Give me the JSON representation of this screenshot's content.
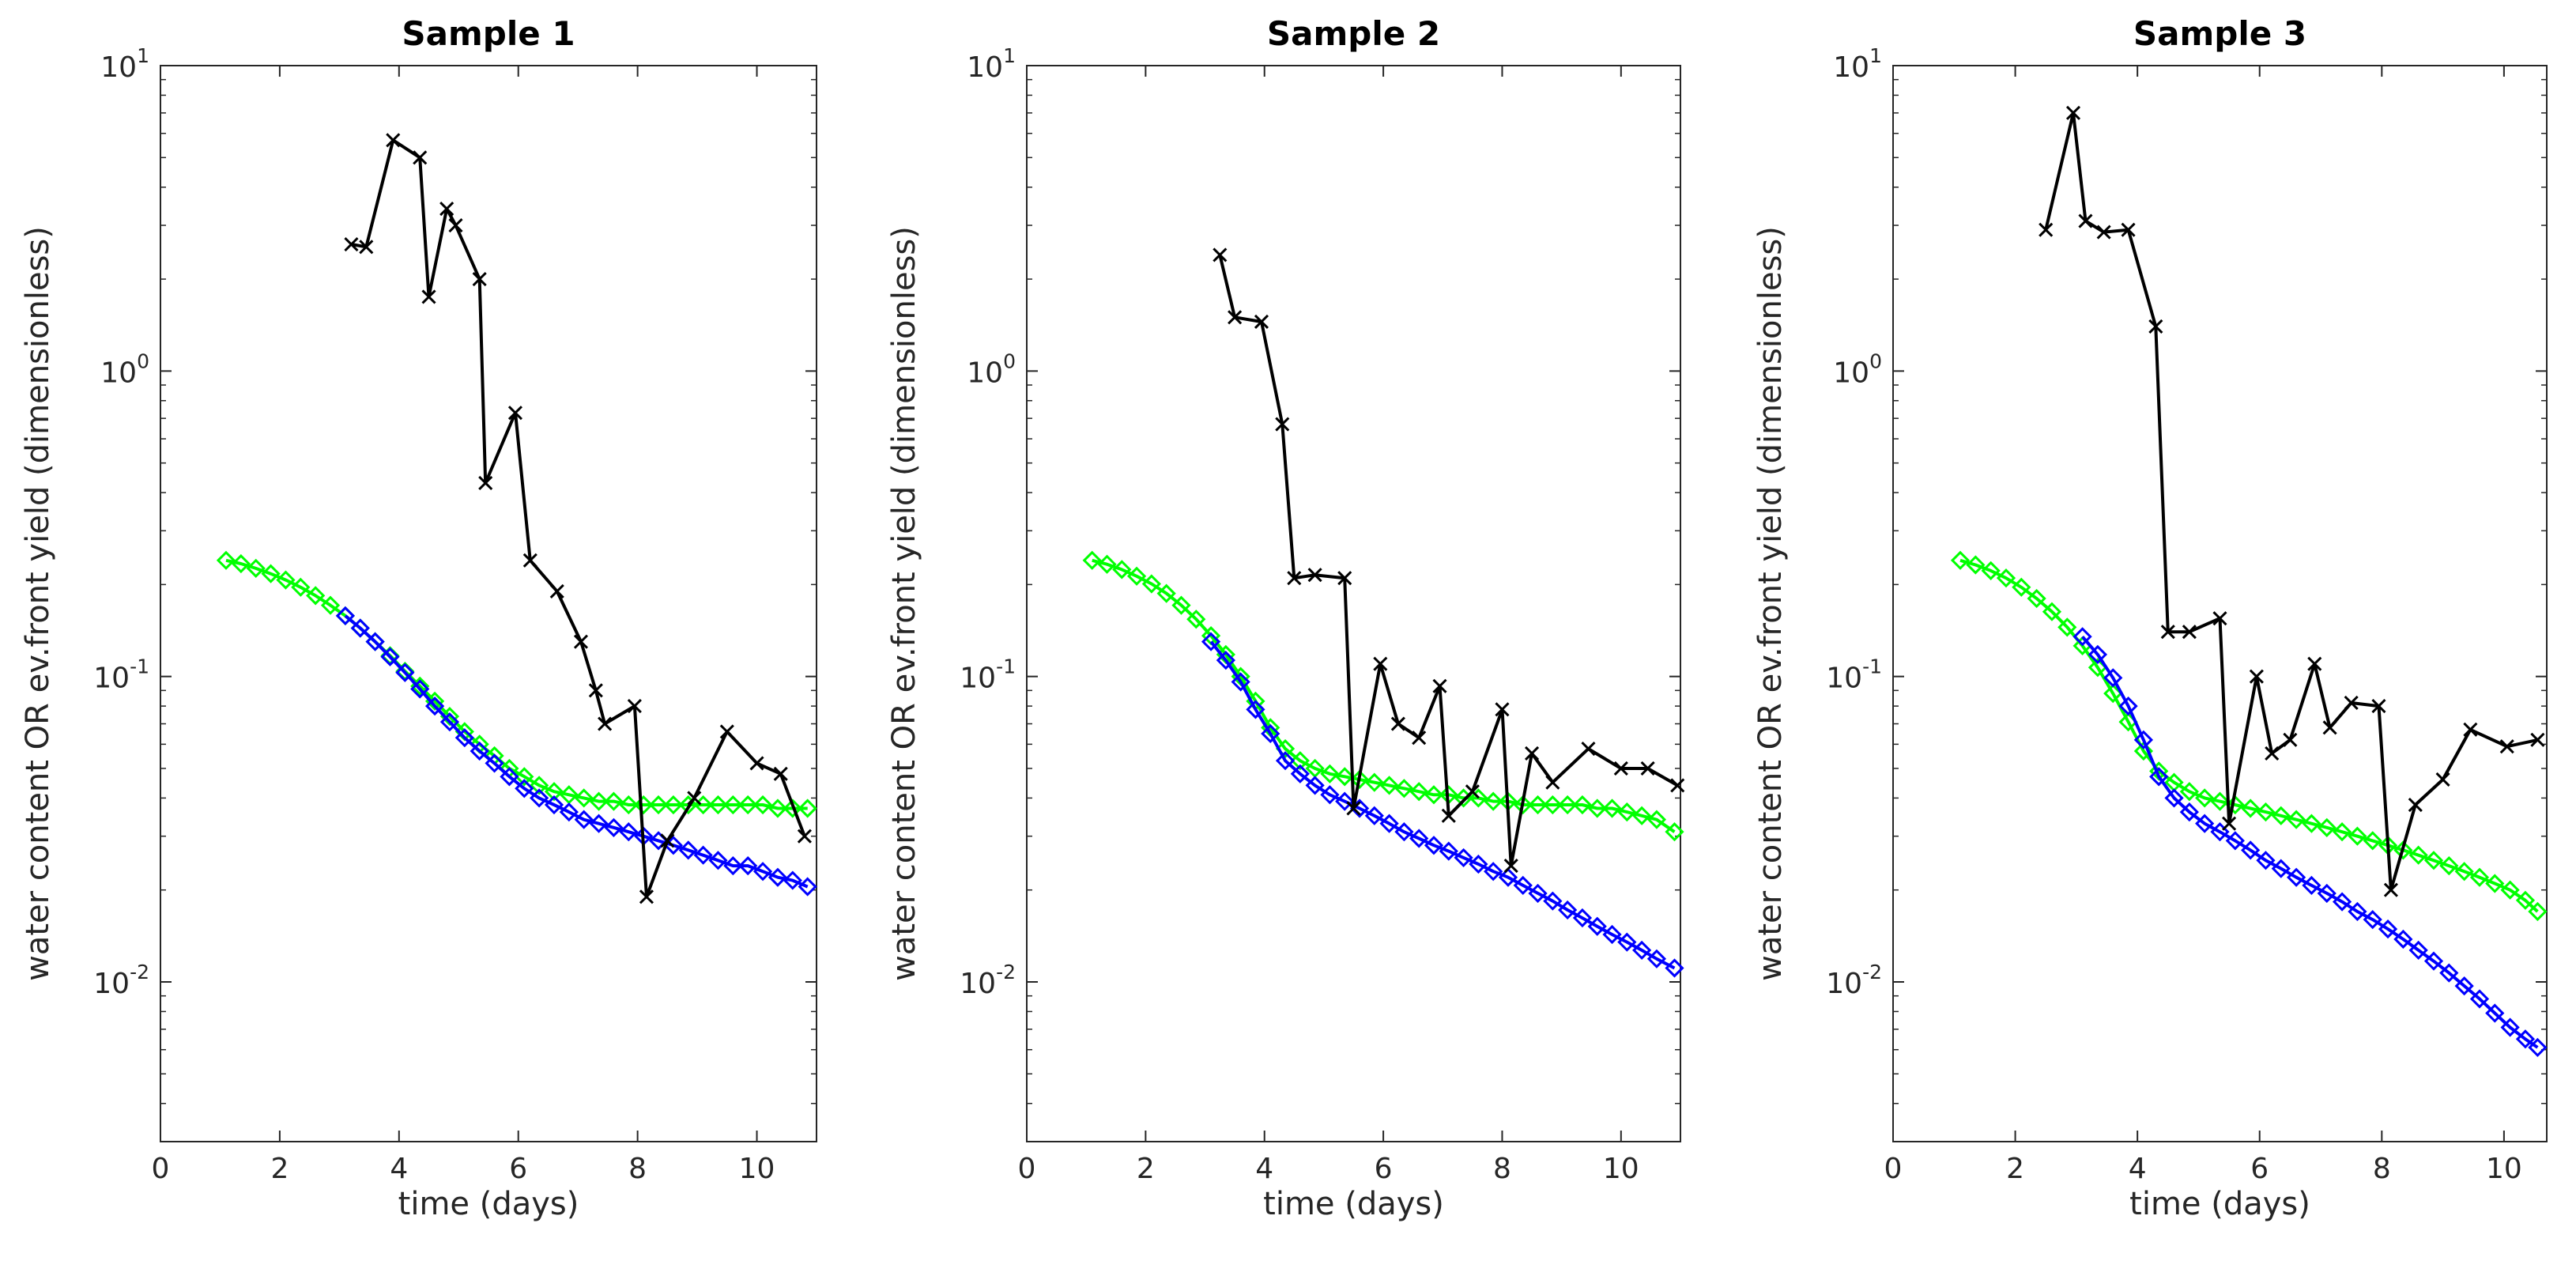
{
  "figure": {
    "colors": {
      "black_series": "#000000",
      "green_series": "#00ff00",
      "blue_series": "#0000ff",
      "axis": "#262626"
    }
  },
  "chart_data": [
    {
      "type": "line",
      "title": "Sample 1",
      "xlabel": "time (days)",
      "ylabel": "water content OR ev.front yield (dimensionless)",
      "yscale": "log",
      "xlim": [
        0,
        11
      ],
      "ylim": [
        0.003,
        10
      ],
      "xticks": [
        0,
        2,
        4,
        6,
        8,
        10
      ],
      "yticks": [
        {
          "base": "10",
          "exp": "-2",
          "value": 0.01
        },
        {
          "base": "10",
          "exp": "-1",
          "value": 0.1
        },
        {
          "base": "10",
          "exp": "0",
          "value": 1
        },
        {
          "base": "10",
          "exp": "1",
          "value": 10
        }
      ],
      "series": [
        {
          "name": "ev.front yield",
          "color": "#000000",
          "marker": "x",
          "x": [
            3.2,
            3.45,
            3.9,
            4.35,
            4.5,
            4.8,
            4.95,
            5.35,
            5.45,
            5.95,
            6.2,
            6.65,
            7.05,
            7.3,
            7.45,
            7.95,
            8.15,
            8.5,
            8.95,
            9.5,
            10.0,
            10.4,
            10.8
          ],
          "y": [
            2.6,
            2.55,
            5.7,
            5.0,
            1.75,
            3.4,
            3.0,
            2.0,
            0.43,
            0.73,
            0.24,
            0.19,
            0.13,
            0.09,
            0.07,
            0.08,
            0.019,
            0.029,
            0.04,
            0.066,
            0.052,
            0.048,
            0.03
          ]
        },
        {
          "name": "green",
          "color": "#00ff00",
          "marker": "diamond",
          "x": [
            1.1,
            1.35,
            1.6,
            1.85,
            2.1,
            2.35,
            2.6,
            2.85,
            3.1,
            3.35,
            3.6,
            3.85,
            4.1,
            4.35,
            4.6,
            4.85,
            5.1,
            5.35,
            5.6,
            5.85,
            6.1,
            6.35,
            6.6,
            6.85,
            7.1,
            7.35,
            7.6,
            7.85,
            8.1,
            8.35,
            8.6,
            8.85,
            9.1,
            9.35,
            9.6,
            9.85,
            10.1,
            10.35,
            10.6,
            10.85
          ],
          "y": [
            0.24,
            0.234,
            0.226,
            0.217,
            0.207,
            0.196,
            0.184,
            0.171,
            0.158,
            0.144,
            0.13,
            0.117,
            0.104,
            0.093,
            0.083,
            0.074,
            0.066,
            0.06,
            0.055,
            0.05,
            0.047,
            0.044,
            0.042,
            0.041,
            0.04,
            0.039,
            0.039,
            0.038,
            0.038,
            0.038,
            0.038,
            0.038,
            0.038,
            0.038,
            0.038,
            0.038,
            0.038,
            0.037,
            0.037,
            0.037
          ]
        },
        {
          "name": "blue",
          "color": "#0000ff",
          "marker": "diamond",
          "x": [
            3.1,
            3.35,
            3.6,
            3.85,
            4.1,
            4.35,
            4.6,
            4.85,
            5.1,
            5.35,
            5.6,
            5.85,
            6.1,
            6.35,
            6.6,
            6.85,
            7.1,
            7.35,
            7.6,
            7.85,
            8.1,
            8.35,
            8.6,
            8.85,
            9.1,
            9.35,
            9.6,
            9.85,
            10.1,
            10.35,
            10.6,
            10.85
          ],
          "y": [
            0.158,
            0.144,
            0.13,
            0.116,
            0.103,
            0.091,
            0.08,
            0.071,
            0.063,
            0.057,
            0.052,
            0.047,
            0.043,
            0.04,
            0.038,
            0.036,
            0.034,
            0.033,
            0.032,
            0.031,
            0.03,
            0.029,
            0.028,
            0.027,
            0.026,
            0.025,
            0.024,
            0.024,
            0.023,
            0.022,
            0.0215,
            0.0205
          ]
        }
      ]
    },
    {
      "type": "line",
      "title": "Sample 2",
      "xlabel": "time (days)",
      "ylabel": "water content OR ev.front yield (dimensionless)",
      "yscale": "log",
      "xlim": [
        0,
        11
      ],
      "ylim": [
        0.003,
        10
      ],
      "xticks": [
        0,
        2,
        4,
        6,
        8,
        10
      ],
      "yticks": [
        {
          "base": "10",
          "exp": "-2",
          "value": 0.01
        },
        {
          "base": "10",
          "exp": "-1",
          "value": 0.1
        },
        {
          "base": "10",
          "exp": "0",
          "value": 1
        },
        {
          "base": "10",
          "exp": "1",
          "value": 10
        }
      ],
      "series": [
        {
          "name": "ev.front yield",
          "color": "#000000",
          "marker": "x",
          "x": [
            3.25,
            3.5,
            3.95,
            4.3,
            4.5,
            4.85,
            5.35,
            5.5,
            5.95,
            6.25,
            6.6,
            6.95,
            7.1,
            7.5,
            8.0,
            8.15,
            8.5,
            8.85,
            9.45,
            10.0,
            10.45,
            10.95
          ],
          "y": [
            2.4,
            1.5,
            1.45,
            0.67,
            0.21,
            0.215,
            0.21,
            0.037,
            0.11,
            0.07,
            0.063,
            0.093,
            0.035,
            0.042,
            0.078,
            0.024,
            0.056,
            0.045,
            0.058,
            0.05,
            0.05,
            0.044
          ]
        },
        {
          "name": "green",
          "color": "#00ff00",
          "marker": "diamond",
          "x": [
            1.1,
            1.35,
            1.6,
            1.85,
            2.1,
            2.35,
            2.6,
            2.85,
            3.1,
            3.35,
            3.6,
            3.85,
            4.1,
            4.35,
            4.6,
            4.85,
            5.1,
            5.35,
            5.6,
            5.85,
            6.1,
            6.35,
            6.6,
            6.85,
            7.1,
            7.35,
            7.6,
            7.85,
            8.1,
            8.35,
            8.6,
            8.85,
            9.1,
            9.35,
            9.6,
            9.85,
            10.1,
            10.35,
            10.6,
            10.9
          ],
          "y": [
            0.24,
            0.233,
            0.224,
            0.213,
            0.201,
            0.187,
            0.171,
            0.154,
            0.136,
            0.118,
            0.1,
            0.083,
            0.068,
            0.058,
            0.053,
            0.05,
            0.048,
            0.047,
            0.046,
            0.045,
            0.044,
            0.043,
            0.042,
            0.041,
            0.041,
            0.04,
            0.04,
            0.039,
            0.039,
            0.038,
            0.038,
            0.038,
            0.038,
            0.038,
            0.037,
            0.037,
            0.036,
            0.035,
            0.034,
            0.031
          ]
        },
        {
          "name": "blue",
          "color": "#0000ff",
          "marker": "diamond",
          "x": [
            3.1,
            3.35,
            3.6,
            3.85,
            4.1,
            4.35,
            4.6,
            4.85,
            5.1,
            5.35,
            5.6,
            5.85,
            6.1,
            6.35,
            6.6,
            6.85,
            7.1,
            7.35,
            7.6,
            7.85,
            8.1,
            8.35,
            8.6,
            8.85,
            9.1,
            9.35,
            9.6,
            9.85,
            10.1,
            10.35,
            10.6,
            10.9
          ],
          "y": [
            0.13,
            0.113,
            0.096,
            0.078,
            0.065,
            0.053,
            0.048,
            0.044,
            0.041,
            0.039,
            0.037,
            0.035,
            0.033,
            0.031,
            0.0295,
            0.028,
            0.0268,
            0.0255,
            0.0243,
            0.023,
            0.022,
            0.0207,
            0.0195,
            0.0184,
            0.0172,
            0.0162,
            0.0152,
            0.0143,
            0.0135,
            0.0127,
            0.0119,
            0.0111
          ]
        }
      ]
    },
    {
      "type": "line",
      "title": "Sample 3",
      "xlabel": "time (days)",
      "ylabel": "water content OR ev.front yield (dimensionless)",
      "yscale": "log",
      "xlim": [
        0,
        10.7
      ],
      "ylim": [
        0.003,
        10
      ],
      "xticks": [
        0,
        2,
        4,
        6,
        8,
        10
      ],
      "yticks": [
        {
          "base": "10",
          "exp": "-2",
          "value": 0.01
        },
        {
          "base": "10",
          "exp": "-1",
          "value": 0.1
        },
        {
          "base": "10",
          "exp": "0",
          "value": 1
        },
        {
          "base": "10",
          "exp": "1",
          "value": 10
        }
      ],
      "series": [
        {
          "name": "ev.front yield",
          "color": "#000000",
          "marker": "x",
          "x": [
            2.5,
            2.95,
            3.15,
            3.45,
            3.85,
            4.3,
            4.5,
            4.85,
            5.35,
            5.5,
            5.95,
            6.2,
            6.5,
            6.9,
            7.15,
            7.5,
            7.95,
            8.15,
            8.55,
            9.0,
            9.45,
            10.05,
            10.55
          ],
          "y": [
            2.9,
            7.0,
            3.1,
            2.85,
            2.9,
            1.4,
            0.14,
            0.14,
            0.155,
            0.033,
            0.1,
            0.056,
            0.062,
            0.11,
            0.068,
            0.082,
            0.08,
            0.02,
            0.038,
            0.046,
            0.067,
            0.059,
            0.062
          ]
        },
        {
          "name": "green",
          "color": "#00ff00",
          "marker": "diamond",
          "x": [
            1.1,
            1.35,
            1.6,
            1.85,
            2.1,
            2.35,
            2.6,
            2.85,
            3.1,
            3.35,
            3.6,
            3.85,
            4.1,
            4.35,
            4.6,
            4.85,
            5.1,
            5.35,
            5.6,
            5.85,
            6.1,
            6.35,
            6.6,
            6.85,
            7.1,
            7.35,
            7.6,
            7.85,
            8.1,
            8.35,
            8.6,
            8.85,
            9.1,
            9.35,
            9.6,
            9.85,
            10.1,
            10.35,
            10.55
          ],
          "y": [
            0.24,
            0.232,
            0.222,
            0.21,
            0.196,
            0.18,
            0.163,
            0.145,
            0.126,
            0.107,
            0.088,
            0.071,
            0.057,
            0.049,
            0.045,
            0.042,
            0.04,
            0.039,
            0.038,
            0.037,
            0.036,
            0.035,
            0.034,
            0.033,
            0.032,
            0.031,
            0.03,
            0.029,
            0.028,
            0.027,
            0.026,
            0.025,
            0.024,
            0.023,
            0.022,
            0.021,
            0.02,
            0.0185,
            0.017
          ]
        },
        {
          "name": "blue",
          "color": "#0000ff",
          "marker": "diamond",
          "x": [
            3.1,
            3.35,
            3.6,
            3.85,
            4.1,
            4.35,
            4.6,
            4.85,
            5.1,
            5.35,
            5.6,
            5.85,
            6.1,
            6.35,
            6.6,
            6.85,
            7.1,
            7.35,
            7.6,
            7.85,
            8.1,
            8.35,
            8.6,
            8.85,
            9.1,
            9.35,
            9.6,
            9.85,
            10.1,
            10.35,
            10.55
          ],
          "y": [
            0.135,
            0.118,
            0.099,
            0.08,
            0.062,
            0.047,
            0.04,
            0.036,
            0.033,
            0.031,
            0.029,
            0.027,
            0.025,
            0.0235,
            0.022,
            0.0207,
            0.0195,
            0.0183,
            0.017,
            0.016,
            0.0149,
            0.0138,
            0.0127,
            0.0117,
            0.0107,
            0.0097,
            0.0088,
            0.0079,
            0.0071,
            0.0065,
            0.0061
          ]
        }
      ]
    }
  ]
}
